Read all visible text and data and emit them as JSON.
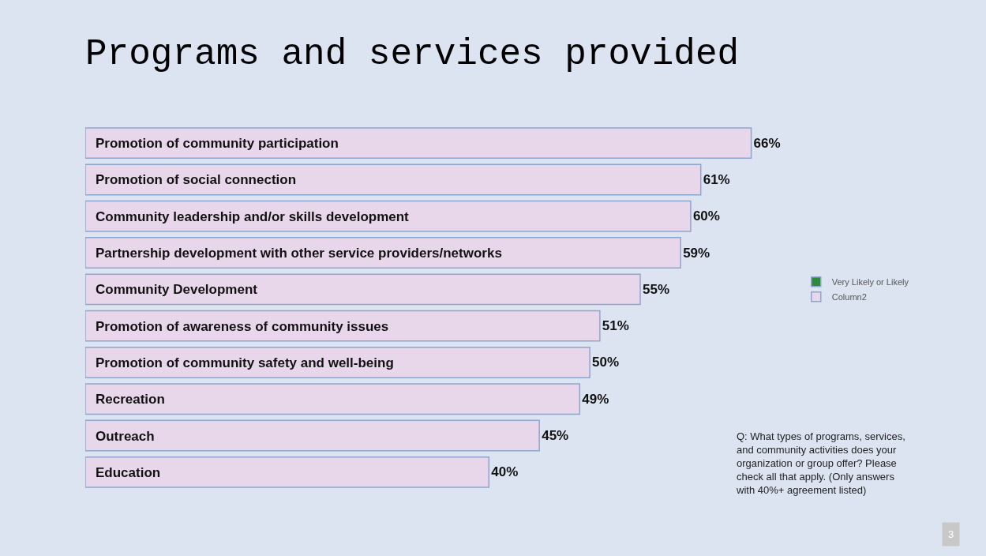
{
  "chart_data": {
    "type": "bar",
    "orientation": "horizontal",
    "title": "Programs and services provided",
    "categories": [
      "Promotion of community participation",
      "Promotion of social connection",
      "Community leadership and/or skills development",
      "Partnership development with other service providers/networks",
      "Community Development",
      "Promotion of awareness of community issues",
      "Promotion of community safety and well-being",
      "Recreation",
      "Outreach",
      "Education"
    ],
    "series": [
      {
        "name": "Very Likely or Likely",
        "color": "#2e8b3a",
        "values": [
          null,
          null,
          null,
          null,
          null,
          null,
          null,
          null,
          null,
          null
        ]
      },
      {
        "name": "Column2",
        "color": "#e8d6ea",
        "values": [
          66,
          61,
          60,
          59,
          55,
          51,
          50,
          49,
          45,
          40
        ],
        "value_labels": [
          "66%",
          "61%",
          "60%",
          "59%",
          "55%",
          "51%",
          "50%",
          "49%",
          "45%",
          "40%"
        ]
      }
    ],
    "tick_labels": "y",
    "legend": "right",
    "grid": false,
    "annotations": [
      "Q: What types of programs, services, and community activities does your organization or group offer? Please check all that apply. (Only answers with 40%+ agreement listed)",
      "3"
    ]
  }
}
